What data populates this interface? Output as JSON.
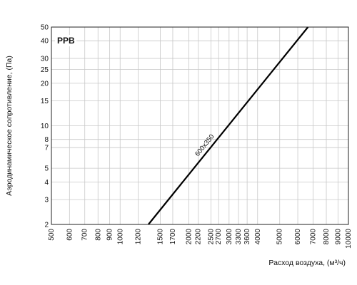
{
  "chart_data": {
    "type": "line",
    "title": "PPB",
    "xlabel": "Расход воздуха, (м³/ч)",
    "ylabel": "Аэродинамическое сопротивление, (Па)",
    "x_scale": "log",
    "y_scale": "log",
    "xlim": [
      500,
      10000
    ],
    "ylim": [
      2,
      50
    ],
    "x_ticks": [
      500,
      600,
      700,
      800,
      900,
      1000,
      1200,
      1500,
      1700,
      2000,
      2200,
      2500,
      2700,
      3000,
      3300,
      3600,
      4000,
      5000,
      6000,
      7000,
      8000,
      9000,
      10000
    ],
    "y_ticks": [
      2,
      3,
      4,
      5,
      7,
      8,
      10,
      15,
      20,
      25,
      30,
      40,
      50
    ],
    "grid": true,
    "series": [
      {
        "name": "600x350",
        "color": "#000000",
        "points": [
          [
            1330,
            2
          ],
          [
            6650,
            50
          ]
        ]
      }
    ]
  }
}
